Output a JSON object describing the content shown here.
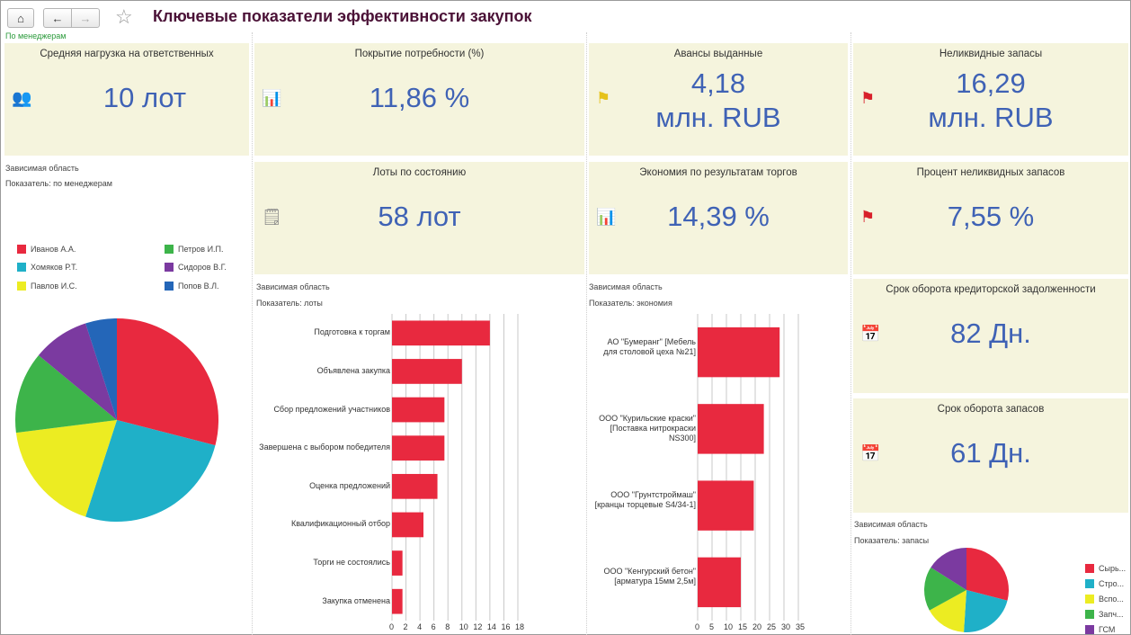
{
  "header": {
    "title": "Ключевые показатели эффективности закупок",
    "subtitle": "По менеджерам",
    "home": "⌂",
    "back": "←",
    "forward": "→",
    "star": "☆"
  },
  "tiles": [
    {
      "title": "Средняя нагрузка на ответственных",
      "value": "10 лот",
      "icon": "users-icon"
    },
    {
      "title": "Покрытие потребности (%)",
      "value": "11,86 %",
      "icon": "chart-icon"
    },
    {
      "title": "Авансы выданные",
      "value": "4,18\nмлн. RUB",
      "icon": "flag-yellow-icon"
    },
    {
      "title": "Неликвидные запасы",
      "value": "16,29\nмлн. RUB",
      "icon": "flag-red-icon"
    },
    {
      "title": "Лоты по состоянию",
      "value": "58 лот",
      "icon": "document-clock-icon"
    },
    {
      "title": "Экономия по результатам торгов",
      "value": "14,39 %",
      "icon": "chart-icon"
    },
    {
      "title": "Процент неликвидных запасов",
      "value": "7,55 %",
      "icon": "flag-red-icon"
    },
    {
      "title": "Срок оборота кредиторской задолженности",
      "value": "82 Дн.",
      "icon": "calendar-icon"
    },
    {
      "title": "Срок оборота запасов",
      "value": "61 Дн.",
      "icon": "calendar-icon"
    }
  ],
  "dep_label": "Зависимая область",
  "chart_data": [
    {
      "type": "pie",
      "caption": "Показатель: по менеджерам",
      "labels": [
        "Иванов А.А.",
        "Хомяков Р.Т.",
        "Павлов И.С.",
        "Петров И.П.",
        "Сидоров В.Г.",
        "Попов В.Л."
      ],
      "values": [
        29,
        26,
        18,
        13,
        9,
        5
      ],
      "colors": [
        "#e8293f",
        "#1fb0c8",
        "#ecec22",
        "#3db44a",
        "#7b3aa0",
        "#2466b8"
      ]
    },
    {
      "type": "bar",
      "caption": "Показатель:  лоты",
      "categories": [
        "Подготовка к торгам",
        "Объявлена закупка",
        "Сбор предложений участников",
        "Завершена с выбором победителя",
        "Оценка предложений",
        "Квалификационный отбор",
        "Торги не состоялись",
        "Закупка отменена"
      ],
      "values": [
        14,
        10,
        7.5,
        7.5,
        6.5,
        4.5,
        1.5,
        1.5
      ],
      "xticks": [
        "0",
        "2",
        "4",
        "6",
        "8",
        "10",
        "12",
        "14",
        "16",
        "18"
      ],
      "xlim": [
        0,
        18
      ],
      "color": "#e8293f"
    },
    {
      "type": "bar",
      "caption": "Показатель:  экономия",
      "categories": [
        "АО \"Бумеранг\" [Мебель для столовой цеха №21]",
        "ООО \"Курильские краски\" [Поставка нитрокраски NS300]",
        "ООО \"Грунтстроймаш\" [кранцы торцевые S4/34-1]",
        "ООО \"Кенгурский бетон\" [арматура 15мм 2,5м]"
      ],
      "values": [
        28.5,
        23,
        19.5,
        15
      ],
      "xticks": [
        "0",
        "5",
        "10",
        "15",
        "20",
        "25",
        "30",
        "35"
      ],
      "xlim": [
        0,
        35
      ],
      "color": "#e8293f"
    },
    {
      "type": "pie",
      "caption": "Показатель:  запасы",
      "labels": [
        "Сырь...",
        "Стро...",
        "Вспо...",
        "Запч...",
        "ГСМ"
      ],
      "values": [
        29,
        22,
        16,
        17,
        16
      ],
      "colors": [
        "#e8293f",
        "#1fb0c8",
        "#ecec22",
        "#3db44a",
        "#7b3aa0"
      ]
    }
  ]
}
